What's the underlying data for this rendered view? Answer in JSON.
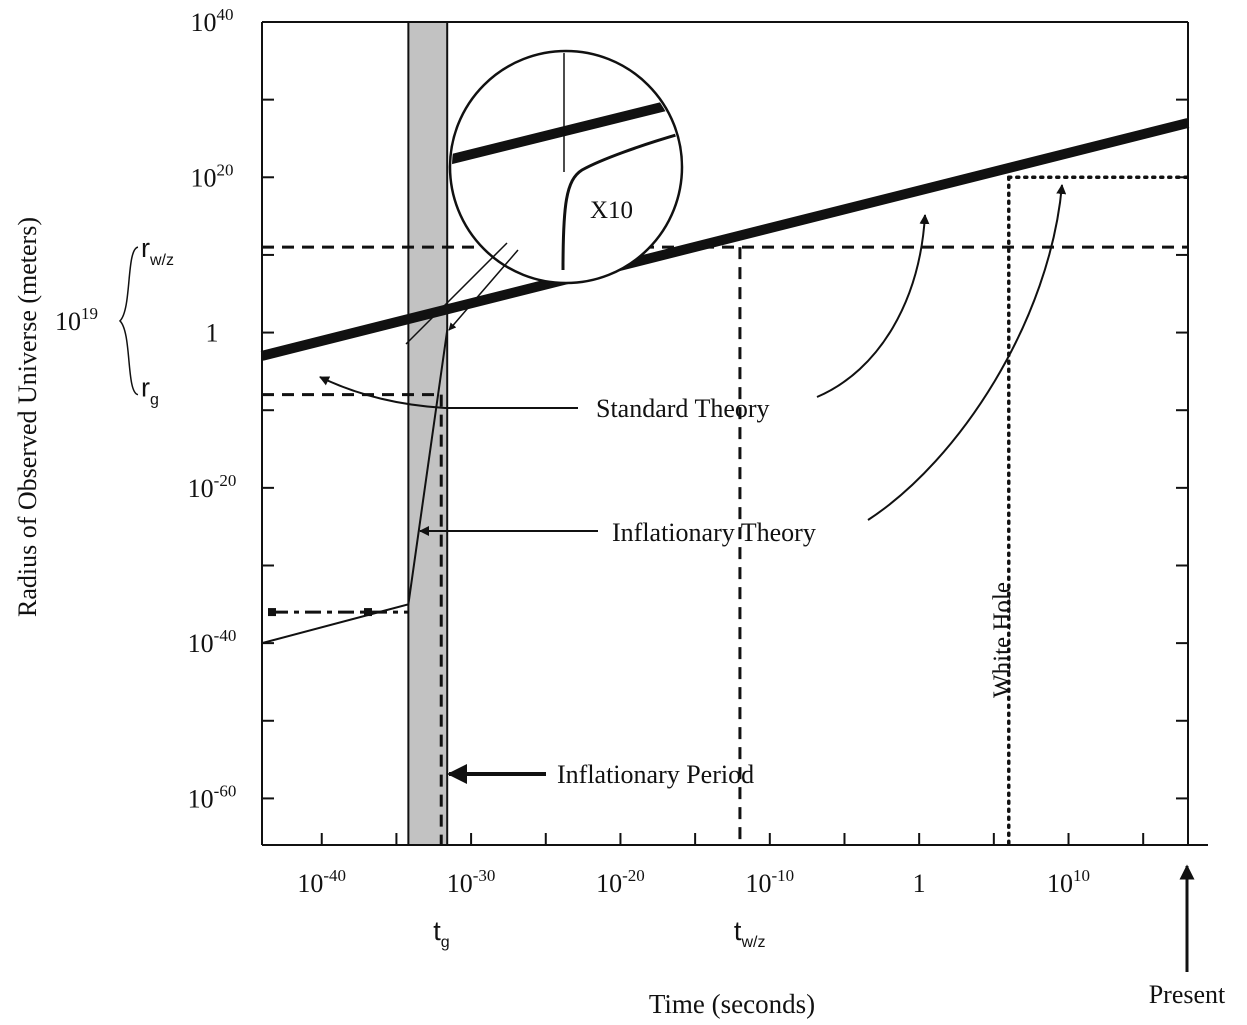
{
  "chart_data": {
    "type": "line",
    "xlabel": "Time (seconds)",
    "ylabel": "Radius of Observed Universe (meters)",
    "x_scale": "log",
    "y_scale": "log",
    "xlim_log10": [
      -44,
      18
    ],
    "ylim_log10": [
      -66,
      40
    ],
    "x_ticks": [
      {
        "exp": -40,
        "base": "10",
        "sup": "-40"
      },
      {
        "exp": -30,
        "base": "10",
        "sup": "-30"
      },
      {
        "exp": -20,
        "base": "10",
        "sup": "-20"
      },
      {
        "exp": -10,
        "base": "10",
        "sup": "-10"
      },
      {
        "exp": 0,
        "base": "1",
        "sup": ""
      },
      {
        "exp": 10,
        "base": "10",
        "sup": "10"
      }
    ],
    "y_ticks": [
      {
        "exp": 40,
        "base": "10",
        "sup": "40"
      },
      {
        "exp": 20,
        "base": "10",
        "sup": "20"
      },
      {
        "exp": 0,
        "base": "1",
        "sup": ""
      },
      {
        "exp": -20,
        "base": "10",
        "sup": "-20"
      },
      {
        "exp": -40,
        "base": "10",
        "sup": "-40"
      },
      {
        "exp": -60,
        "base": "10",
        "sup": "-60"
      }
    ],
    "series": [
      {
        "role": "standard",
        "x_log10": [
          -44,
          18
        ],
        "y_log10": [
          -3,
          27
        ]
      },
      {
        "role": "inflationary",
        "x_log10": [
          -44,
          -34.2,
          -31.6
        ],
        "y_log10": [
          -40,
          -35,
          0.3
        ]
      }
    ],
    "inflationary_period_log10": [
      -34.2,
      -31.6
    ],
    "markers": {
      "r_wz_log10": 11,
      "r_g_log10": -8,
      "t_g_log10": -32,
      "t_wz_log10": -12,
      "white_hole_t_log10": 6,
      "white_hole_r_log10": 20,
      "seed_r_log10": -36,
      "seed_t_log10": [
        -44,
        -34.2
      ]
    },
    "labels": {
      "standard": "Standard Theory",
      "inflationary": "Inflationary Theory",
      "period": "Inflationary Period",
      "white_hole": "White Hole",
      "inset": "X10",
      "present": "Present",
      "r_wz_base": "r",
      "r_wz_sub": "w/z",
      "r_g_base": "r",
      "r_g_sub": "g",
      "t_g_base": "t",
      "t_g_sub": "g",
      "t_wz_base": "t",
      "t_wz_sub": "w/z",
      "span_base": "10",
      "span_sup": "19"
    }
  }
}
